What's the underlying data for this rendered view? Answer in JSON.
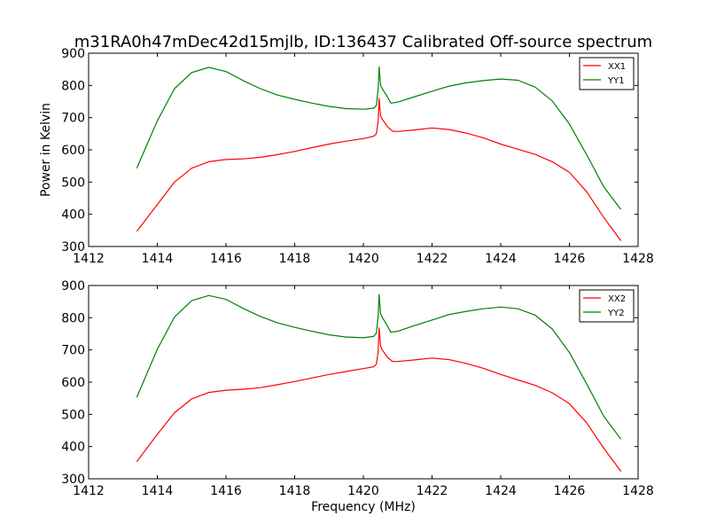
{
  "figure_title": "m31RA0h47mDec42d15mjlb, ID:136437 Calibrated Off-source spectrum",
  "colors": {
    "XX": "#ff0000",
    "YY": "#008000",
    "axes": "#000000",
    "background": "#ffffff"
  },
  "chart_data": [
    {
      "type": "line",
      "title": "m31RA0h47mDec42d15mjlb, ID:136437 Calibrated Off-source spectrum",
      "xlabel": "",
      "ylabel": "Power in Kelvin",
      "xlim": [
        1412,
        1428
      ],
      "ylim": [
        300,
        900
      ],
      "xticks": [
        1412,
        1414,
        1416,
        1418,
        1420,
        1422,
        1424,
        1426,
        1428
      ],
      "yticks": [
        300,
        400,
        500,
        600,
        700,
        800,
        900
      ],
      "legend_position": "top-right",
      "grid": false,
      "series": [
        {
          "name": "XX1",
          "color": "#ff0000",
          "points": [
            [
              1413.4,
              347
            ],
            [
              1414.0,
              430
            ],
            [
              1414.5,
              500
            ],
            [
              1415.0,
              543
            ],
            [
              1415.5,
              563
            ],
            [
              1416.0,
              570
            ],
            [
              1416.5,
              572
            ],
            [
              1417.0,
              577
            ],
            [
              1417.5,
              585
            ],
            [
              1418.0,
              595
            ],
            [
              1418.5,
              607
            ],
            [
              1419.0,
              618
            ],
            [
              1419.5,
              627
            ],
            [
              1420.0,
              635
            ],
            [
              1420.3,
              642
            ],
            [
              1420.38,
              650
            ],
            [
              1420.43,
              690
            ],
            [
              1420.46,
              760
            ],
            [
              1420.5,
              705
            ],
            [
              1420.55,
              695
            ],
            [
              1420.62,
              685
            ],
            [
              1420.7,
              672
            ],
            [
              1420.85,
              658
            ],
            [
              1421.0,
              657
            ],
            [
              1421.5,
              662
            ],
            [
              1422.0,
              668
            ],
            [
              1422.5,
              663
            ],
            [
              1423.0,
              652
            ],
            [
              1423.5,
              637
            ],
            [
              1424.0,
              618
            ],
            [
              1424.5,
              602
            ],
            [
              1425.0,
              586
            ],
            [
              1425.5,
              563
            ],
            [
              1426.0,
              530
            ],
            [
              1426.5,
              470
            ],
            [
              1427.0,
              390
            ],
            [
              1427.5,
              318
            ]
          ]
        },
        {
          "name": "YY1",
          "color": "#008000",
          "points": [
            [
              1413.4,
              543
            ],
            [
              1414.0,
              690
            ],
            [
              1414.5,
              790
            ],
            [
              1415.0,
              840
            ],
            [
              1415.5,
              856
            ],
            [
              1416.0,
              843
            ],
            [
              1416.5,
              815
            ],
            [
              1417.0,
              790
            ],
            [
              1417.5,
              770
            ],
            [
              1418.0,
              757
            ],
            [
              1418.5,
              745
            ],
            [
              1419.0,
              735
            ],
            [
              1419.5,
              728
            ],
            [
              1420.0,
              726
            ],
            [
              1420.3,
              729
            ],
            [
              1420.38,
              738
            ],
            [
              1420.43,
              790
            ],
            [
              1420.46,
              858
            ],
            [
              1420.5,
              800
            ],
            [
              1420.58,
              785
            ],
            [
              1420.68,
              768
            ],
            [
              1420.8,
              745
            ],
            [
              1421.0,
              748
            ],
            [
              1421.5,
              765
            ],
            [
              1422.0,
              782
            ],
            [
              1422.5,
              798
            ],
            [
              1423.0,
              808
            ],
            [
              1423.5,
              815
            ],
            [
              1424.0,
              820
            ],
            [
              1424.5,
              816
            ],
            [
              1425.0,
              795
            ],
            [
              1425.5,
              752
            ],
            [
              1426.0,
              680
            ],
            [
              1426.5,
              585
            ],
            [
              1427.0,
              485
            ],
            [
              1427.5,
              415
            ]
          ]
        }
      ]
    },
    {
      "type": "line",
      "title": "",
      "xlabel": "Frequency (MHz)",
      "ylabel": "",
      "xlim": [
        1412,
        1428
      ],
      "ylim": [
        300,
        900
      ],
      "xticks": [
        1412,
        1414,
        1416,
        1418,
        1420,
        1422,
        1424,
        1426,
        1428
      ],
      "yticks": [
        300,
        400,
        500,
        600,
        700,
        800,
        900
      ],
      "legend_position": "top-right",
      "grid": false,
      "series": [
        {
          "name": "XX2",
          "color": "#ff0000",
          "points": [
            [
              1413.4,
              353
            ],
            [
              1414.0,
              438
            ],
            [
              1414.5,
              505
            ],
            [
              1415.0,
              548
            ],
            [
              1415.5,
              568
            ],
            [
              1416.0,
              575
            ],
            [
              1416.5,
              578
            ],
            [
              1417.0,
              583
            ],
            [
              1417.5,
              592
            ],
            [
              1418.0,
              602
            ],
            [
              1418.5,
              613
            ],
            [
              1419.0,
              624
            ],
            [
              1419.5,
              633
            ],
            [
              1420.0,
              642
            ],
            [
              1420.3,
              648
            ],
            [
              1420.38,
              656
            ],
            [
              1420.43,
              695
            ],
            [
              1420.46,
              768
            ],
            [
              1420.5,
              712
            ],
            [
              1420.55,
              700
            ],
            [
              1420.62,
              690
            ],
            [
              1420.7,
              677
            ],
            [
              1420.85,
              664
            ],
            [
              1421.0,
              664
            ],
            [
              1421.5,
              669
            ],
            [
              1422.0,
              675
            ],
            [
              1422.5,
              670
            ],
            [
              1423.0,
              658
            ],
            [
              1423.5,
              643
            ],
            [
              1424.0,
              624
            ],
            [
              1424.5,
              607
            ],
            [
              1425.0,
              590
            ],
            [
              1425.5,
              567
            ],
            [
              1426.0,
              533
            ],
            [
              1426.5,
              474
            ],
            [
              1427.0,
              395
            ],
            [
              1427.5,
              323
            ]
          ]
        },
        {
          "name": "YY2",
          "color": "#008000",
          "points": [
            [
              1413.4,
              553
            ],
            [
              1414.0,
              702
            ],
            [
              1414.5,
              802
            ],
            [
              1415.0,
              853
            ],
            [
              1415.5,
              869
            ],
            [
              1416.0,
              857
            ],
            [
              1416.5,
              829
            ],
            [
              1417.0,
              804
            ],
            [
              1417.5,
              784
            ],
            [
              1418.0,
              770
            ],
            [
              1418.5,
              758
            ],
            [
              1419.0,
              747
            ],
            [
              1419.5,
              740
            ],
            [
              1420.0,
              738
            ],
            [
              1420.3,
              742
            ],
            [
              1420.38,
              752
            ],
            [
              1420.43,
              805
            ],
            [
              1420.46,
              872
            ],
            [
              1420.5,
              812
            ],
            [
              1420.58,
              796
            ],
            [
              1420.68,
              778
            ],
            [
              1420.8,
              755
            ],
            [
              1421.0,
              758
            ],
            [
              1421.5,
              776
            ],
            [
              1422.0,
              793
            ],
            [
              1422.5,
              810
            ],
            [
              1423.0,
              820
            ],
            [
              1423.5,
              828
            ],
            [
              1424.0,
              833
            ],
            [
              1424.5,
              828
            ],
            [
              1425.0,
              808
            ],
            [
              1425.5,
              765
            ],
            [
              1426.0,
              692
            ],
            [
              1426.5,
              595
            ],
            [
              1427.0,
              494
            ],
            [
              1427.5,
              423
            ]
          ]
        }
      ]
    }
  ]
}
